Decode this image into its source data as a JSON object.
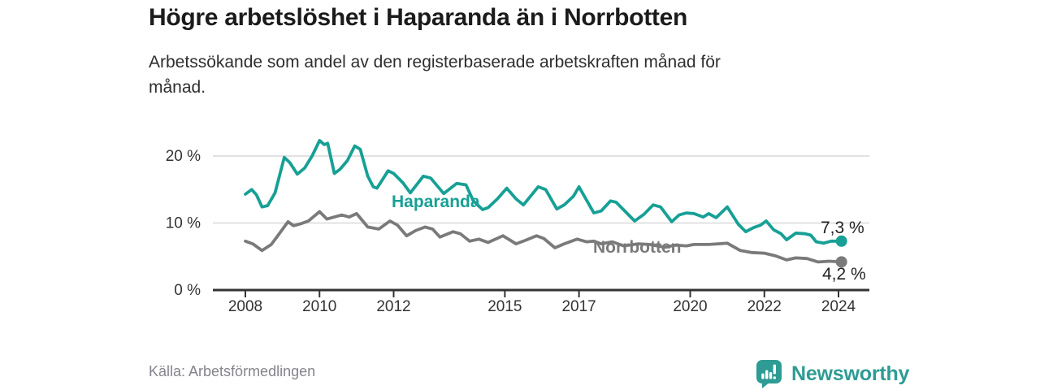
{
  "branding": {
    "logo_text": "Newsworthy"
  },
  "chart_data": {
    "type": "line",
    "title": "Högre arbetslöshet i Haparanda än i Norrbotten",
    "subtitle": "Arbetssökande som andel av den registerbaserade arbetskraften månad för månad.",
    "source": "Källa: Arbetsförmedlingen",
    "x_ticks": [
      2008,
      2010,
      2012,
      2015,
      2017,
      2020,
      2022,
      2024
    ],
    "y_ticks": [
      {
        "value": 0,
        "label": "0 %"
      },
      {
        "value": 10,
        "label": "10 %"
      },
      {
        "value": 20,
        "label": "20 %"
      }
    ],
    "xlim": [
      2007.1,
      2024.8
    ],
    "ylim": [
      0,
      24
    ],
    "grid": "horizontal",
    "legend_position": "inline-labels-on-lines",
    "colors": {
      "axis": "#333333",
      "grid": "#d9d9d9",
      "value_label": "#222222",
      "logo_teal": "#2e9c94"
    },
    "series": [
      {
        "name": "Haparanda",
        "color": "#17a095",
        "end_label": "7,3 %",
        "end_value": 7.3,
        "points": [
          [
            2008.0,
            14.3
          ],
          [
            2008.17,
            15.0
          ],
          [
            2008.3,
            14.2
          ],
          [
            2008.45,
            12.4
          ],
          [
            2008.6,
            12.6
          ],
          [
            2008.8,
            14.5
          ],
          [
            2009.05,
            19.8
          ],
          [
            2009.2,
            19.0
          ],
          [
            2009.4,
            17.3
          ],
          [
            2009.6,
            18.2
          ],
          [
            2009.8,
            20.0
          ],
          [
            2010.0,
            22.3
          ],
          [
            2010.13,
            21.7
          ],
          [
            2010.22,
            21.9
          ],
          [
            2010.4,
            17.4
          ],
          [
            2010.55,
            18.0
          ],
          [
            2010.75,
            19.3
          ],
          [
            2010.95,
            21.5
          ],
          [
            2011.1,
            21.0
          ],
          [
            2011.3,
            17.0
          ],
          [
            2011.45,
            15.4
          ],
          [
            2011.55,
            15.2
          ],
          [
            2011.85,
            17.8
          ],
          [
            2012.0,
            17.4
          ],
          [
            2012.25,
            16.0
          ],
          [
            2012.45,
            14.5
          ],
          [
            2012.8,
            17.0
          ],
          [
            2013.0,
            16.7
          ],
          [
            2013.35,
            14.4
          ],
          [
            2013.7,
            15.9
          ],
          [
            2013.95,
            15.7
          ],
          [
            2014.15,
            13.3
          ],
          [
            2014.4,
            12.0
          ],
          [
            2014.55,
            12.3
          ],
          [
            2014.8,
            13.6
          ],
          [
            2015.05,
            15.2
          ],
          [
            2015.3,
            13.6
          ],
          [
            2015.5,
            12.7
          ],
          [
            2015.9,
            15.4
          ],
          [
            2016.1,
            15.0
          ],
          [
            2016.4,
            12.1
          ],
          [
            2016.6,
            12.7
          ],
          [
            2016.85,
            14.0
          ],
          [
            2017.0,
            15.4
          ],
          [
            2017.4,
            11.5
          ],
          [
            2017.6,
            11.8
          ],
          [
            2017.85,
            13.3
          ],
          [
            2018.0,
            13.1
          ],
          [
            2018.5,
            10.3
          ],
          [
            2018.75,
            11.3
          ],
          [
            2019.0,
            12.7
          ],
          [
            2019.2,
            12.4
          ],
          [
            2019.5,
            10.2
          ],
          [
            2019.7,
            11.2
          ],
          [
            2019.9,
            11.5
          ],
          [
            2020.1,
            11.4
          ],
          [
            2020.35,
            10.9
          ],
          [
            2020.5,
            11.4
          ],
          [
            2020.7,
            10.8
          ],
          [
            2021.0,
            12.4
          ],
          [
            2021.3,
            9.8
          ],
          [
            2021.5,
            8.7
          ],
          [
            2021.7,
            9.3
          ],
          [
            2021.9,
            9.7
          ],
          [
            2022.05,
            10.3
          ],
          [
            2022.25,
            9.0
          ],
          [
            2022.45,
            8.4
          ],
          [
            2022.6,
            7.5
          ],
          [
            2022.85,
            8.5
          ],
          [
            2023.1,
            8.4
          ],
          [
            2023.25,
            8.2
          ],
          [
            2023.4,
            7.2
          ],
          [
            2023.6,
            7.0
          ],
          [
            2023.8,
            7.3
          ],
          [
            2024.08,
            7.3
          ]
        ]
      },
      {
        "name": "Norrbotten",
        "color": "#7a7a7a",
        "end_label": "4,2 %",
        "end_value": 4.2,
        "points": [
          [
            2008.0,
            7.3
          ],
          [
            2008.2,
            6.9
          ],
          [
            2008.45,
            5.9
          ],
          [
            2008.7,
            6.8
          ],
          [
            2008.9,
            8.3
          ],
          [
            2009.15,
            10.2
          ],
          [
            2009.3,
            9.6
          ],
          [
            2009.5,
            9.9
          ],
          [
            2009.7,
            10.3
          ],
          [
            2010.0,
            11.7
          ],
          [
            2010.2,
            10.6
          ],
          [
            2010.4,
            10.9
          ],
          [
            2010.6,
            11.2
          ],
          [
            2010.8,
            10.9
          ],
          [
            2011.0,
            11.4
          ],
          [
            2011.3,
            9.4
          ],
          [
            2011.6,
            9.1
          ],
          [
            2011.9,
            10.3
          ],
          [
            2012.1,
            9.7
          ],
          [
            2012.35,
            8.1
          ],
          [
            2012.6,
            8.9
          ],
          [
            2012.85,
            9.4
          ],
          [
            2013.05,
            9.1
          ],
          [
            2013.25,
            7.9
          ],
          [
            2013.6,
            8.7
          ],
          [
            2013.8,
            8.4
          ],
          [
            2014.05,
            7.3
          ],
          [
            2014.3,
            7.6
          ],
          [
            2014.55,
            7.1
          ],
          [
            2014.95,
            8.1
          ],
          [
            2015.3,
            6.9
          ],
          [
            2015.55,
            7.4
          ],
          [
            2015.85,
            8.1
          ],
          [
            2016.05,
            7.7
          ],
          [
            2016.35,
            6.3
          ],
          [
            2016.6,
            6.9
          ],
          [
            2016.95,
            7.6
          ],
          [
            2017.2,
            7.2
          ],
          [
            2017.4,
            7.3
          ],
          [
            2017.6,
            6.9
          ],
          [
            2017.9,
            7.2
          ],
          [
            2018.2,
            6.6
          ],
          [
            2018.6,
            6.9
          ],
          [
            2018.9,
            6.8
          ],
          [
            2019.3,
            6.4
          ],
          [
            2019.6,
            6.7
          ],
          [
            2019.9,
            6.6
          ],
          [
            2020.1,
            6.8
          ],
          [
            2020.5,
            6.8
          ],
          [
            2020.75,
            6.9
          ],
          [
            2021.0,
            7.0
          ],
          [
            2021.35,
            5.9
          ],
          [
            2021.65,
            5.6
          ],
          [
            2022.0,
            5.5
          ],
          [
            2022.3,
            5.1
          ],
          [
            2022.6,
            4.5
          ],
          [
            2022.85,
            4.8
          ],
          [
            2023.15,
            4.7
          ],
          [
            2023.45,
            4.2
          ],
          [
            2023.75,
            4.3
          ],
          [
            2024.08,
            4.2
          ]
        ]
      }
    ]
  }
}
